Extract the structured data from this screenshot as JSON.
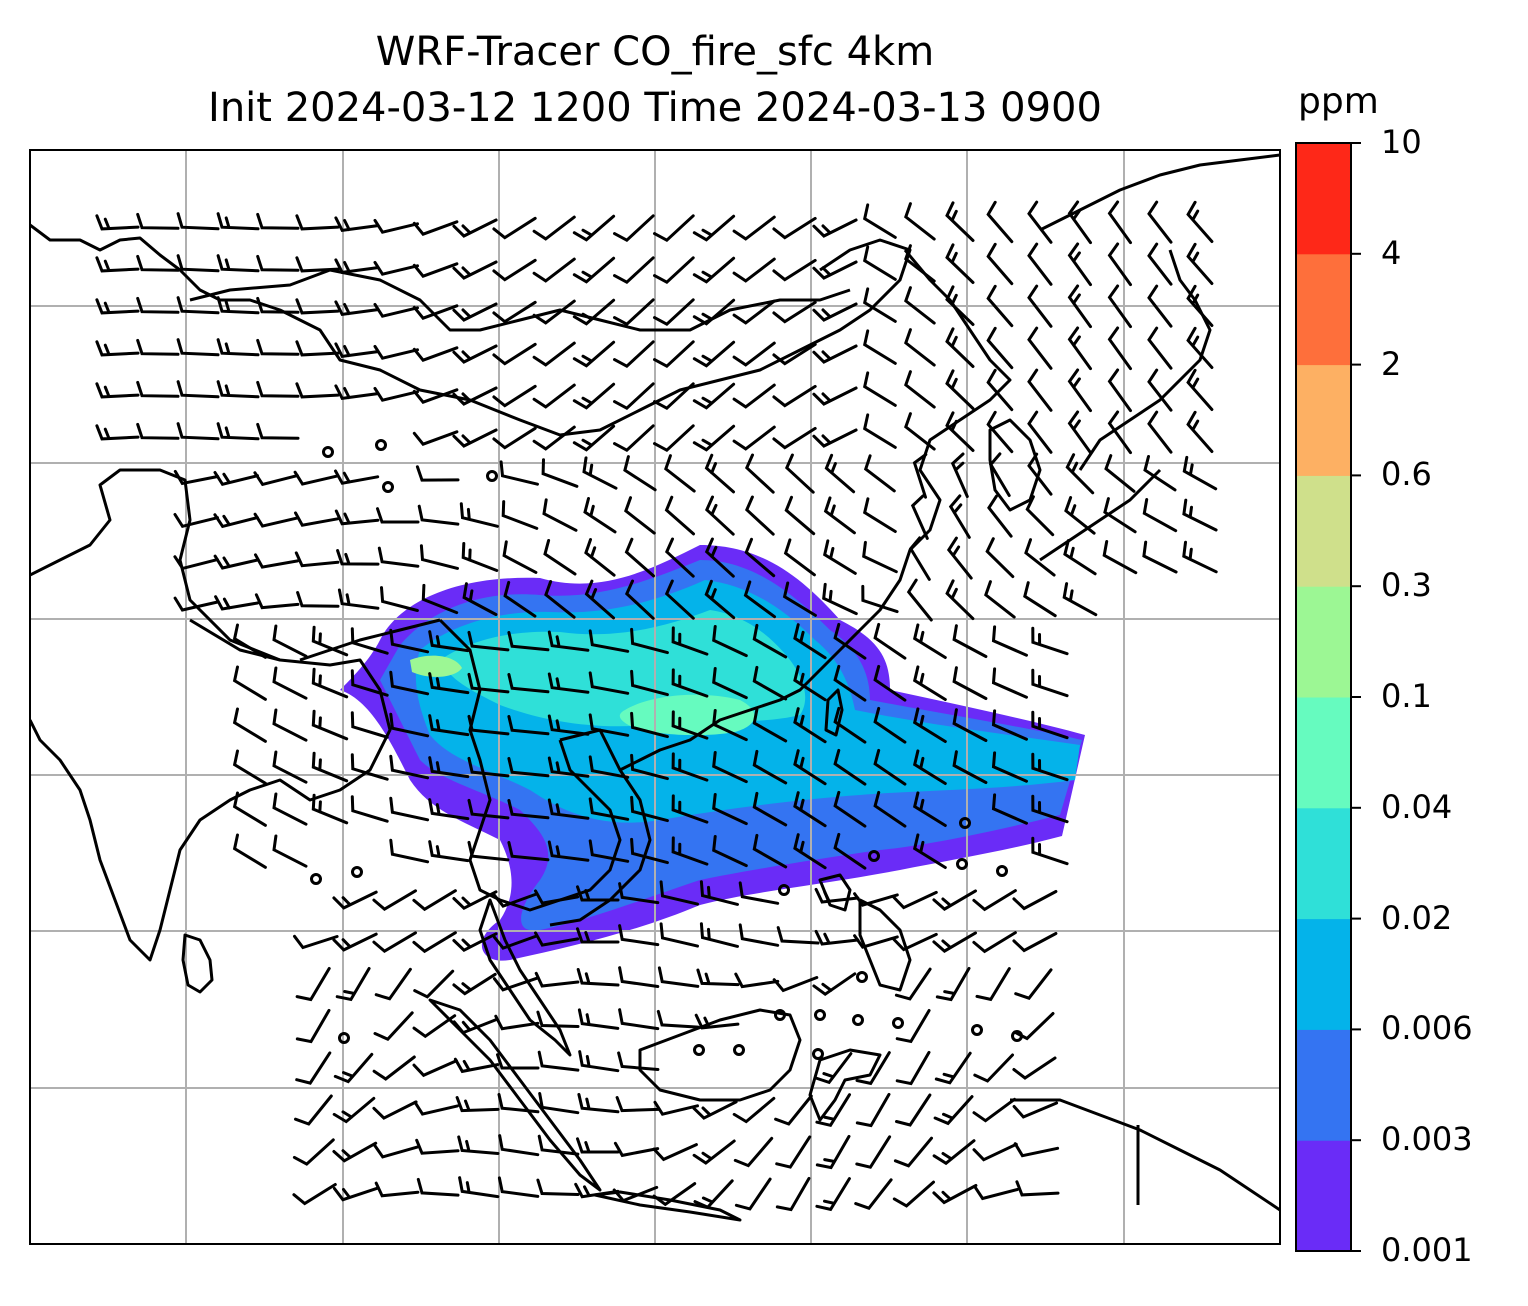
{
  "figure": {
    "title_line1": "WRF-Tracer CO_fire_sfc 4km",
    "title_line2": "Init 2024-03-12 1200 Time 2024-03-13 0900"
  },
  "colorbar": {
    "unit": "ppm",
    "tick_labels": [
      "0.001",
      "0.003",
      "0.006",
      "0.02",
      "0.04",
      "0.1",
      "0.3",
      "0.6",
      "2",
      "4",
      "10"
    ],
    "colors": [
      "#6a2cf7",
      "#3474f2",
      "#04b3ea",
      "#2fe0d8",
      "#66fbbf",
      "#9cf794",
      "#cfe08b",
      "#fdb063",
      "#fe6f3b",
      "#fe2818"
    ]
  },
  "map": {
    "projection_gridlines": true,
    "coastlines": true,
    "country_borders": true,
    "wind_barbs": true,
    "calm_wind_circles": true,
    "plume_levels_present": [
      "0.001",
      "0.003",
      "0.006",
      "0.02",
      "0.04",
      "0.1"
    ]
  }
}
